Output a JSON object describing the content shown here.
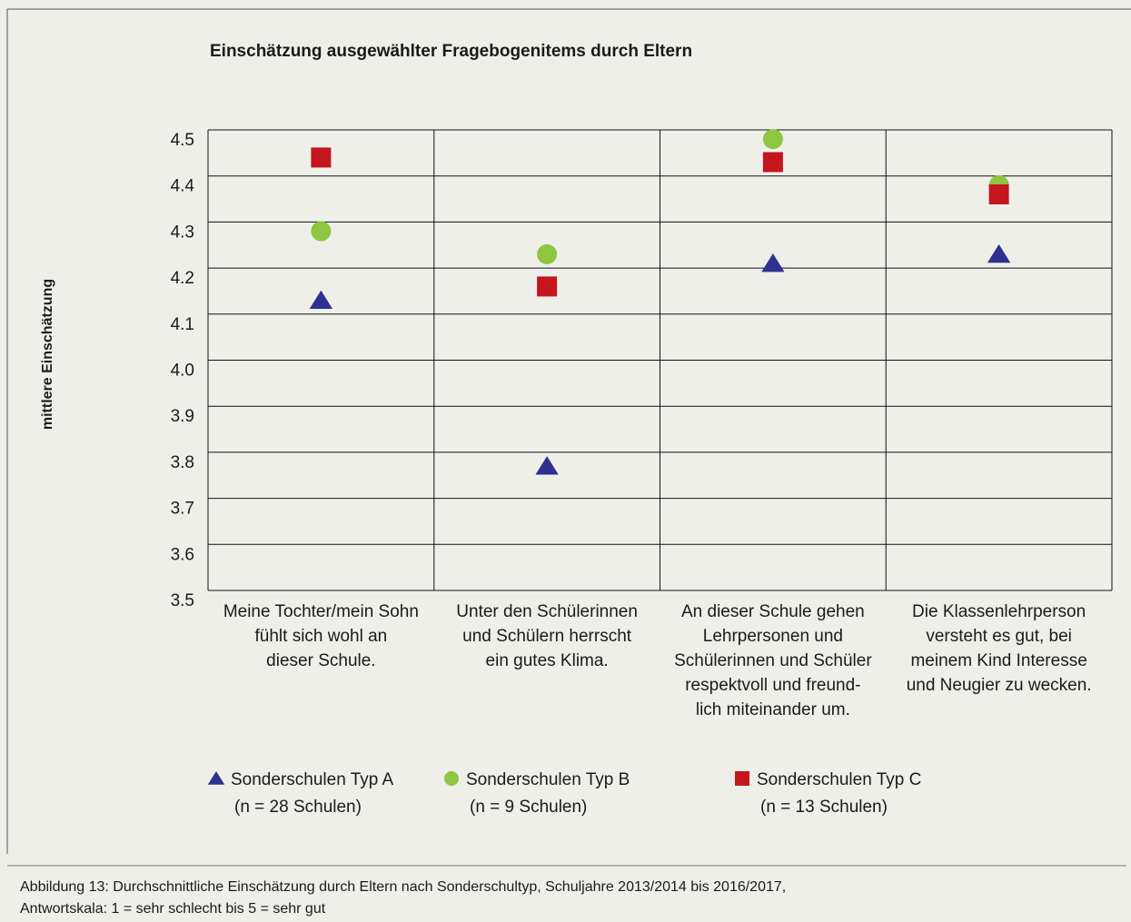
{
  "chart_data": {
    "type": "scatter",
    "title": "Einschätzung ausgewählter Fragebogenitems durch Eltern",
    "y_label": "mittlere Einschätzung",
    "categories": [
      "Meine Tochter/mein Sohn\nfühlt sich wohl an\ndieser Schule.",
      "Unter den Schülerinnen\nund Schülern herrscht\nein gutes Klima.",
      "An dieser Schule gehen\nLehrpersonen und\nSchülerinnen und Schüler\nrespektvoll und freund-\nlich miteinander um.",
      "Die Klassenlehrperson\nversteht es gut, bei\nmeinem Kind Interesse\nund Neugier zu wecken."
    ],
    "series": [
      {
        "name": "Sonderschulen Typ A",
        "note": "(n = 28 Schulen)",
        "marker": "triangle",
        "color": "#2e3192",
        "values": [
          4.13,
          3.77,
          4.21,
          4.23
        ]
      },
      {
        "name": "Sonderschulen Typ B",
        "note": "(n = 9 Schulen)",
        "marker": "circle",
        "color": "#8dc63f",
        "values": [
          4.28,
          4.23,
          4.48,
          4.38
        ]
      },
      {
        "name": "Sonderschulen Typ C",
        "note": "(n = 13 Schulen)",
        "marker": "square",
        "color": "#c4161c",
        "values": [
          4.44,
          4.16,
          4.43,
          4.36
        ]
      }
    ],
    "ylim": [
      3.5,
      4.5
    ],
    "yticks": [
      3.5,
      3.6,
      3.7,
      3.8,
      3.9,
      {
        "value": 4,
        "label": "4.0"
      },
      4.1,
      4.2,
      4.3,
      4.4,
      4.5
    ],
    "grid": true,
    "caption": [
      "Abbildung 13: Durchschnittliche Einschätzung durch Eltern nach Sonderschultyp, Schuljahre 2013/2014 bis 2016/2017,",
      "Antwortskala: 1 = sehr schlecht bis 5 = sehr gut"
    ]
  }
}
